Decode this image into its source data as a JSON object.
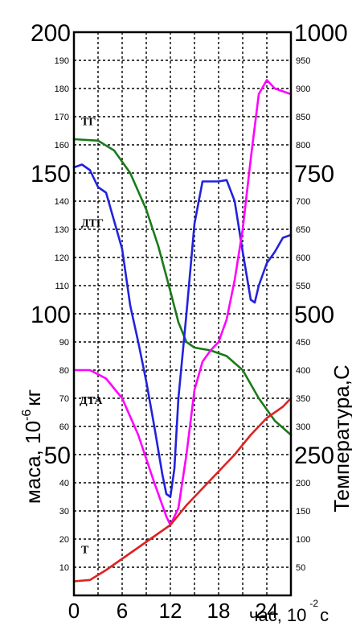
{
  "chart_data": {
    "type": "line",
    "xlabel": "час, 10 с",
    "xlabel_text": "час, 10",
    "xlabel_unit": "с",
    "xlabel_exponent": "-2",
    "ylabel_left_text": "маса, 10",
    "ylabel_left_exponent": "-6",
    "ylabel_left_unit": "кг",
    "ylabel_right": "Температура,С",
    "xlim": [
      0,
      27
    ],
    "ylim_left": [
      0,
      200
    ],
    "ylim_right": [
      0,
      1000
    ],
    "x_ticks": [
      "0",
      "6",
      "12",
      "18",
      "24"
    ],
    "y_left_major_ticks": [
      "200",
      "150",
      "100",
      "50"
    ],
    "y_left_minor_ticks": [
      "190",
      "180",
      "170",
      "160",
      "140",
      "130",
      "120",
      "110",
      "90",
      "80",
      "70",
      "60",
      "40",
      "30",
      "20",
      "10"
    ],
    "y_right_major_ticks": [
      "1000",
      "750",
      "500",
      "250"
    ],
    "y_right_minor_ticks": [
      "950",
      "900",
      "850",
      "800",
      "700",
      "650",
      "600",
      "550",
      "450",
      "400",
      "350",
      "300",
      "200",
      "150",
      "100",
      "50"
    ],
    "grid": true,
    "series": [
      {
        "name": "ТГ",
        "axis": "left",
        "color": "#1a7a1a",
        "points": [
          [
            0,
            162
          ],
          [
            3,
            161.5
          ],
          [
            5,
            158
          ],
          [
            7,
            150
          ],
          [
            9,
            137
          ],
          [
            10.5,
            124
          ],
          [
            12,
            108
          ],
          [
            13,
            97
          ],
          [
            14,
            90
          ],
          [
            15,
            88
          ],
          [
            17,
            87
          ],
          [
            19,
            85
          ],
          [
            21,
            80
          ],
          [
            23,
            70
          ],
          [
            25,
            62
          ],
          [
            27,
            57
          ]
        ]
      },
      {
        "name": "ДТГ",
        "axis": "left",
        "color": "#2222dd",
        "points": [
          [
            0,
            152
          ],
          [
            1,
            153
          ],
          [
            2,
            151
          ],
          [
            3,
            145
          ],
          [
            4,
            143
          ],
          [
            5,
            133
          ],
          [
            6,
            123
          ],
          [
            7,
            103
          ],
          [
            8,
            90
          ],
          [
            9,
            76
          ],
          [
            10,
            60
          ],
          [
            11,
            43
          ],
          [
            11.5,
            36
          ],
          [
            12,
            35
          ],
          [
            12.5,
            45
          ],
          [
            13,
            70
          ],
          [
            14,
            100
          ],
          [
            15,
            132
          ],
          [
            16,
            147
          ],
          [
            17,
            147
          ],
          [
            18,
            147
          ],
          [
            19,
            147.5
          ],
          [
            20,
            140
          ],
          [
            21,
            122
          ],
          [
            22,
            105
          ],
          [
            22.5,
            104
          ],
          [
            23,
            110
          ],
          [
            24,
            118
          ],
          [
            25,
            122
          ],
          [
            26,
            127
          ],
          [
            27,
            128
          ]
        ]
      },
      {
        "name": "ДТА",
        "axis": "left",
        "color": "#ff00ff",
        "points": [
          [
            0,
            80
          ],
          [
            2,
            80
          ],
          [
            4,
            77
          ],
          [
            6,
            70
          ],
          [
            8,
            57
          ],
          [
            10,
            40
          ],
          [
            11.5,
            28
          ],
          [
            12,
            25
          ],
          [
            13,
            31
          ],
          [
            14,
            50
          ],
          [
            15,
            73
          ],
          [
            16,
            83
          ],
          [
            17,
            87
          ],
          [
            18,
            90
          ],
          [
            19,
            98
          ],
          [
            20,
            112
          ],
          [
            21,
            130
          ],
          [
            22,
            155
          ],
          [
            23,
            178
          ],
          [
            24,
            183
          ],
          [
            25,
            180
          ],
          [
            26,
            179
          ],
          [
            27,
            178
          ]
        ]
      },
      {
        "name": "Т",
        "axis": "left",
        "color": "#dd2222",
        "points": [
          [
            0,
            5
          ],
          [
            2,
            5.5
          ],
          [
            4,
            9
          ],
          [
            6,
            13
          ],
          [
            8,
            17
          ],
          [
            10,
            21
          ],
          [
            12,
            25
          ],
          [
            14,
            32
          ],
          [
            16,
            38
          ],
          [
            18,
            44
          ],
          [
            20,
            50
          ],
          [
            22,
            57
          ],
          [
            24,
            63
          ],
          [
            26,
            67
          ],
          [
            27,
            70
          ]
        ]
      }
    ],
    "curve_labels": [
      {
        "text": "ТГ",
        "x": 0.5,
        "y": 167
      },
      {
        "text": "ДТГ",
        "x": 0.5,
        "y": 131
      },
      {
        "text": "ДТА",
        "x": 0.3,
        "y": 68
      },
      {
        "text": "Т",
        "x": 0.5,
        "y": 15
      }
    ]
  }
}
